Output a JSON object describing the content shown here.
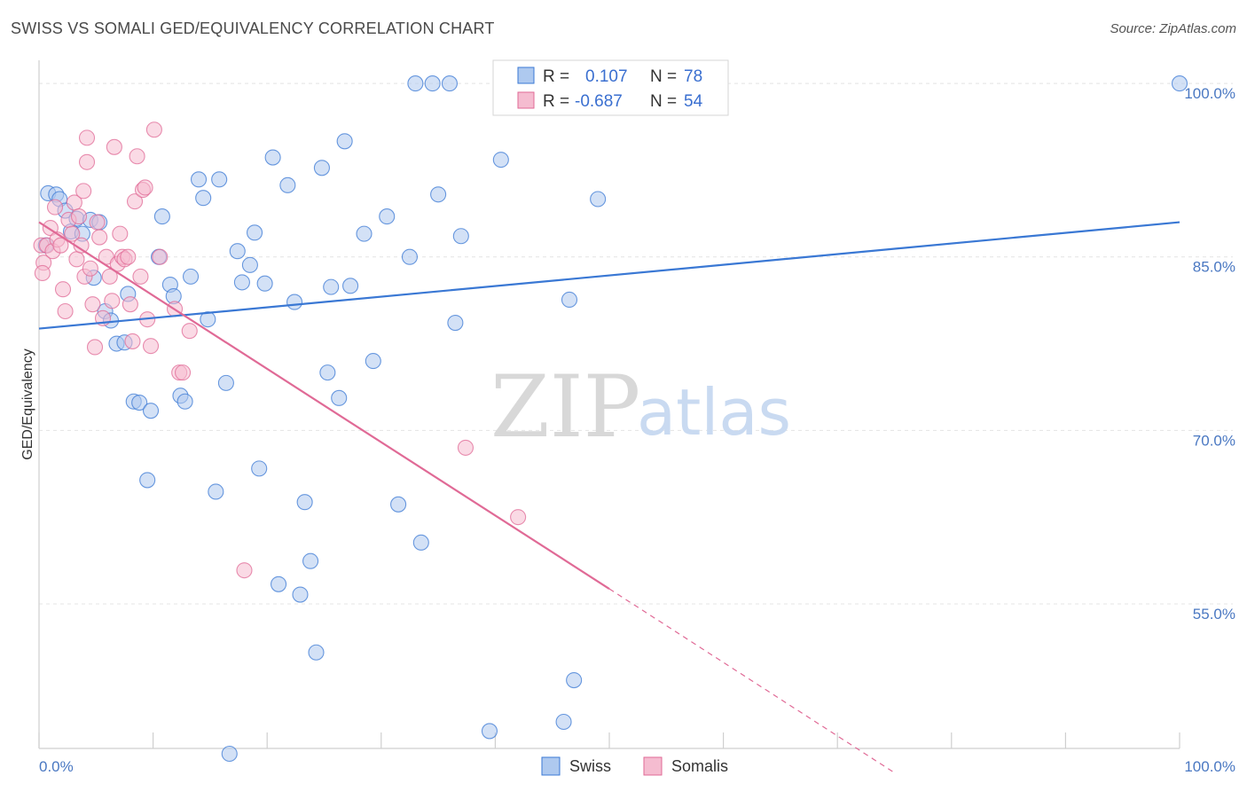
{
  "header": {
    "title": "SWISS VS SOMALI GED/EQUIVALENCY CORRELATION CHART",
    "source": "Source: ZipAtlas.com"
  },
  "watermark": {
    "part1": "ZIP",
    "part2": "atlas"
  },
  "legend": {
    "swiss": {
      "r_label": "R =",
      "r_value": "0.107",
      "n_label": "N =",
      "n_value": "78"
    },
    "somali": {
      "r_label": "R =",
      "r_value": "-0.687",
      "n_label": "N =",
      "n_value": "54"
    }
  },
  "bottom_legend": {
    "swiss": "Swiss",
    "somali": "Somalis"
  },
  "chart_data": {
    "type": "scatter",
    "ylabel": "GED/Equivalency",
    "xlim": [
      0,
      100
    ],
    "ylim": [
      42.5,
      102
    ],
    "x_tick_labels": [
      "0.0%",
      "100.0%"
    ],
    "y_ticks": [
      {
        "value": 100,
        "label": "100.0%"
      },
      {
        "value": 85,
        "label": "85.0%"
      },
      {
        "value": 70,
        "label": "70.0%"
      },
      {
        "value": 55,
        "label": "55.0%"
      }
    ],
    "colors": {
      "swiss": "#3a78d4",
      "swiss_fill": "#aec9ef",
      "somali": "#e06a96",
      "somali_fill": "#f5bcd0"
    },
    "series": [
      {
        "name": "Swiss",
        "trend": {
          "x1": 0,
          "y1": 78.8,
          "x2": 100,
          "y2": 88.0
        },
        "points": [
          [
            0.6,
            86.0
          ],
          [
            0.8,
            90.5
          ],
          [
            1.5,
            90.4
          ],
          [
            1.8,
            90.0
          ],
          [
            2.3,
            89.0
          ],
          [
            2.8,
            87.2
          ],
          [
            3.3,
            88.3
          ],
          [
            3.8,
            87.0
          ],
          [
            4.5,
            88.2
          ],
          [
            5.3,
            88.0
          ],
          [
            4.8,
            83.2
          ],
          [
            5.8,
            80.3
          ],
          [
            6.3,
            79.5
          ],
          [
            6.8,
            77.5
          ],
          [
            7.5,
            77.6
          ],
          [
            7.8,
            81.8
          ],
          [
            8.3,
            72.5
          ],
          [
            8.8,
            72.4
          ],
          [
            9.5,
            65.7
          ],
          [
            9.8,
            71.7
          ],
          [
            10.5,
            85.0
          ],
          [
            10.8,
            88.5
          ],
          [
            11.5,
            82.6
          ],
          [
            11.8,
            81.6
          ],
          [
            12.4,
            73.0
          ],
          [
            12.8,
            72.5
          ],
          [
            13.3,
            83.3
          ],
          [
            14.0,
            91.7
          ],
          [
            14.4,
            90.1
          ],
          [
            14.8,
            79.6
          ],
          [
            15.5,
            64.7
          ],
          [
            15.8,
            91.7
          ],
          [
            16.4,
            74.1
          ],
          [
            17.4,
            85.5
          ],
          [
            17.8,
            82.8
          ],
          [
            18.5,
            84.3
          ],
          [
            18.9,
            87.1
          ],
          [
            19.3,
            66.7
          ],
          [
            19.8,
            82.7
          ],
          [
            20.5,
            93.6
          ],
          [
            21.0,
            56.7
          ],
          [
            21.8,
            91.2
          ],
          [
            22.4,
            81.1
          ],
          [
            22.9,
            55.8
          ],
          [
            23.3,
            63.8
          ],
          [
            23.8,
            58.7
          ],
          [
            24.3,
            50.8
          ],
          [
            24.8,
            92.7
          ],
          [
            25.3,
            75.0
          ],
          [
            25.6,
            82.4
          ],
          [
            26.3,
            72.8
          ],
          [
            26.8,
            95.0
          ],
          [
            27.3,
            82.5
          ],
          [
            28.5,
            87.0
          ],
          [
            29.3,
            76.0
          ],
          [
            30.5,
            88.5
          ],
          [
            31.5,
            63.6
          ],
          [
            32.5,
            85.0
          ],
          [
            33.0,
            100.0
          ],
          [
            33.5,
            60.3
          ],
          [
            34.5,
            100.0
          ],
          [
            35.0,
            90.4
          ],
          [
            36.0,
            100.0
          ],
          [
            36.5,
            79.3
          ],
          [
            37.0,
            86.8
          ],
          [
            39.5,
            44.0
          ],
          [
            40.5,
            93.4
          ],
          [
            41.5,
            100.0
          ],
          [
            43.5,
            100.0
          ],
          [
            45.5,
            99.5
          ],
          [
            46.0,
            44.8
          ],
          [
            46.5,
            81.3
          ],
          [
            46.9,
            48.4
          ],
          [
            47.5,
            100.0
          ],
          [
            49.0,
            90.0
          ],
          [
            52.0,
            100.0
          ],
          [
            16.7,
            40.0
          ],
          [
            100.0,
            100.0
          ]
        ]
      },
      {
        "name": "Somalis",
        "trend": {
          "x1": 0,
          "y1": 88.0,
          "x2": 50,
          "y2": 56.3,
          "dash_x2": 75,
          "dash_y2": 40.4
        },
        "points": [
          [
            0.2,
            86.0
          ],
          [
            0.4,
            84.5
          ],
          [
            0.7,
            86.0
          ],
          [
            1.0,
            87.5
          ],
          [
            1.2,
            85.5
          ],
          [
            1.4,
            89.3
          ],
          [
            1.6,
            86.5
          ],
          [
            1.9,
            86.0
          ],
          [
            2.1,
            82.2
          ],
          [
            2.3,
            80.3
          ],
          [
            2.6,
            88.2
          ],
          [
            2.9,
            87.0
          ],
          [
            3.1,
            89.7
          ],
          [
            3.3,
            84.8
          ],
          [
            3.5,
            88.5
          ],
          [
            3.7,
            86.0
          ],
          [
            3.9,
            90.7
          ],
          [
            4.0,
            83.3
          ],
          [
            4.2,
            95.3
          ],
          [
            4.5,
            84.0
          ],
          [
            4.7,
            80.9
          ],
          [
            4.9,
            77.2
          ],
          [
            5.1,
            88.0
          ],
          [
            5.3,
            86.7
          ],
          [
            5.6,
            79.7
          ],
          [
            5.9,
            85.0
          ],
          [
            6.2,
            83.3
          ],
          [
            6.4,
            81.2
          ],
          [
            6.6,
            94.5
          ],
          [
            6.9,
            84.4
          ],
          [
            7.1,
            87.0
          ],
          [
            7.3,
            85.0
          ],
          [
            7.5,
            84.8
          ],
          [
            7.8,
            85.0
          ],
          [
            8.0,
            80.9
          ],
          [
            8.2,
            77.7
          ],
          [
            8.4,
            89.8
          ],
          [
            8.6,
            93.7
          ],
          [
            8.9,
            83.3
          ],
          [
            9.1,
            90.8
          ],
          [
            9.3,
            91.0
          ],
          [
            9.5,
            79.6
          ],
          [
            9.8,
            77.3
          ],
          [
            10.1,
            96.0
          ],
          [
            10.6,
            85.0
          ],
          [
            11.9,
            80.5
          ],
          [
            12.3,
            75.0
          ],
          [
            12.6,
            75.0
          ],
          [
            13.2,
            78.6
          ],
          [
            18.0,
            57.9
          ],
          [
            37.4,
            68.5
          ],
          [
            42.0,
            62.5
          ],
          [
            4.2,
            93.2
          ],
          [
            0.3,
            83.6
          ]
        ]
      }
    ]
  }
}
